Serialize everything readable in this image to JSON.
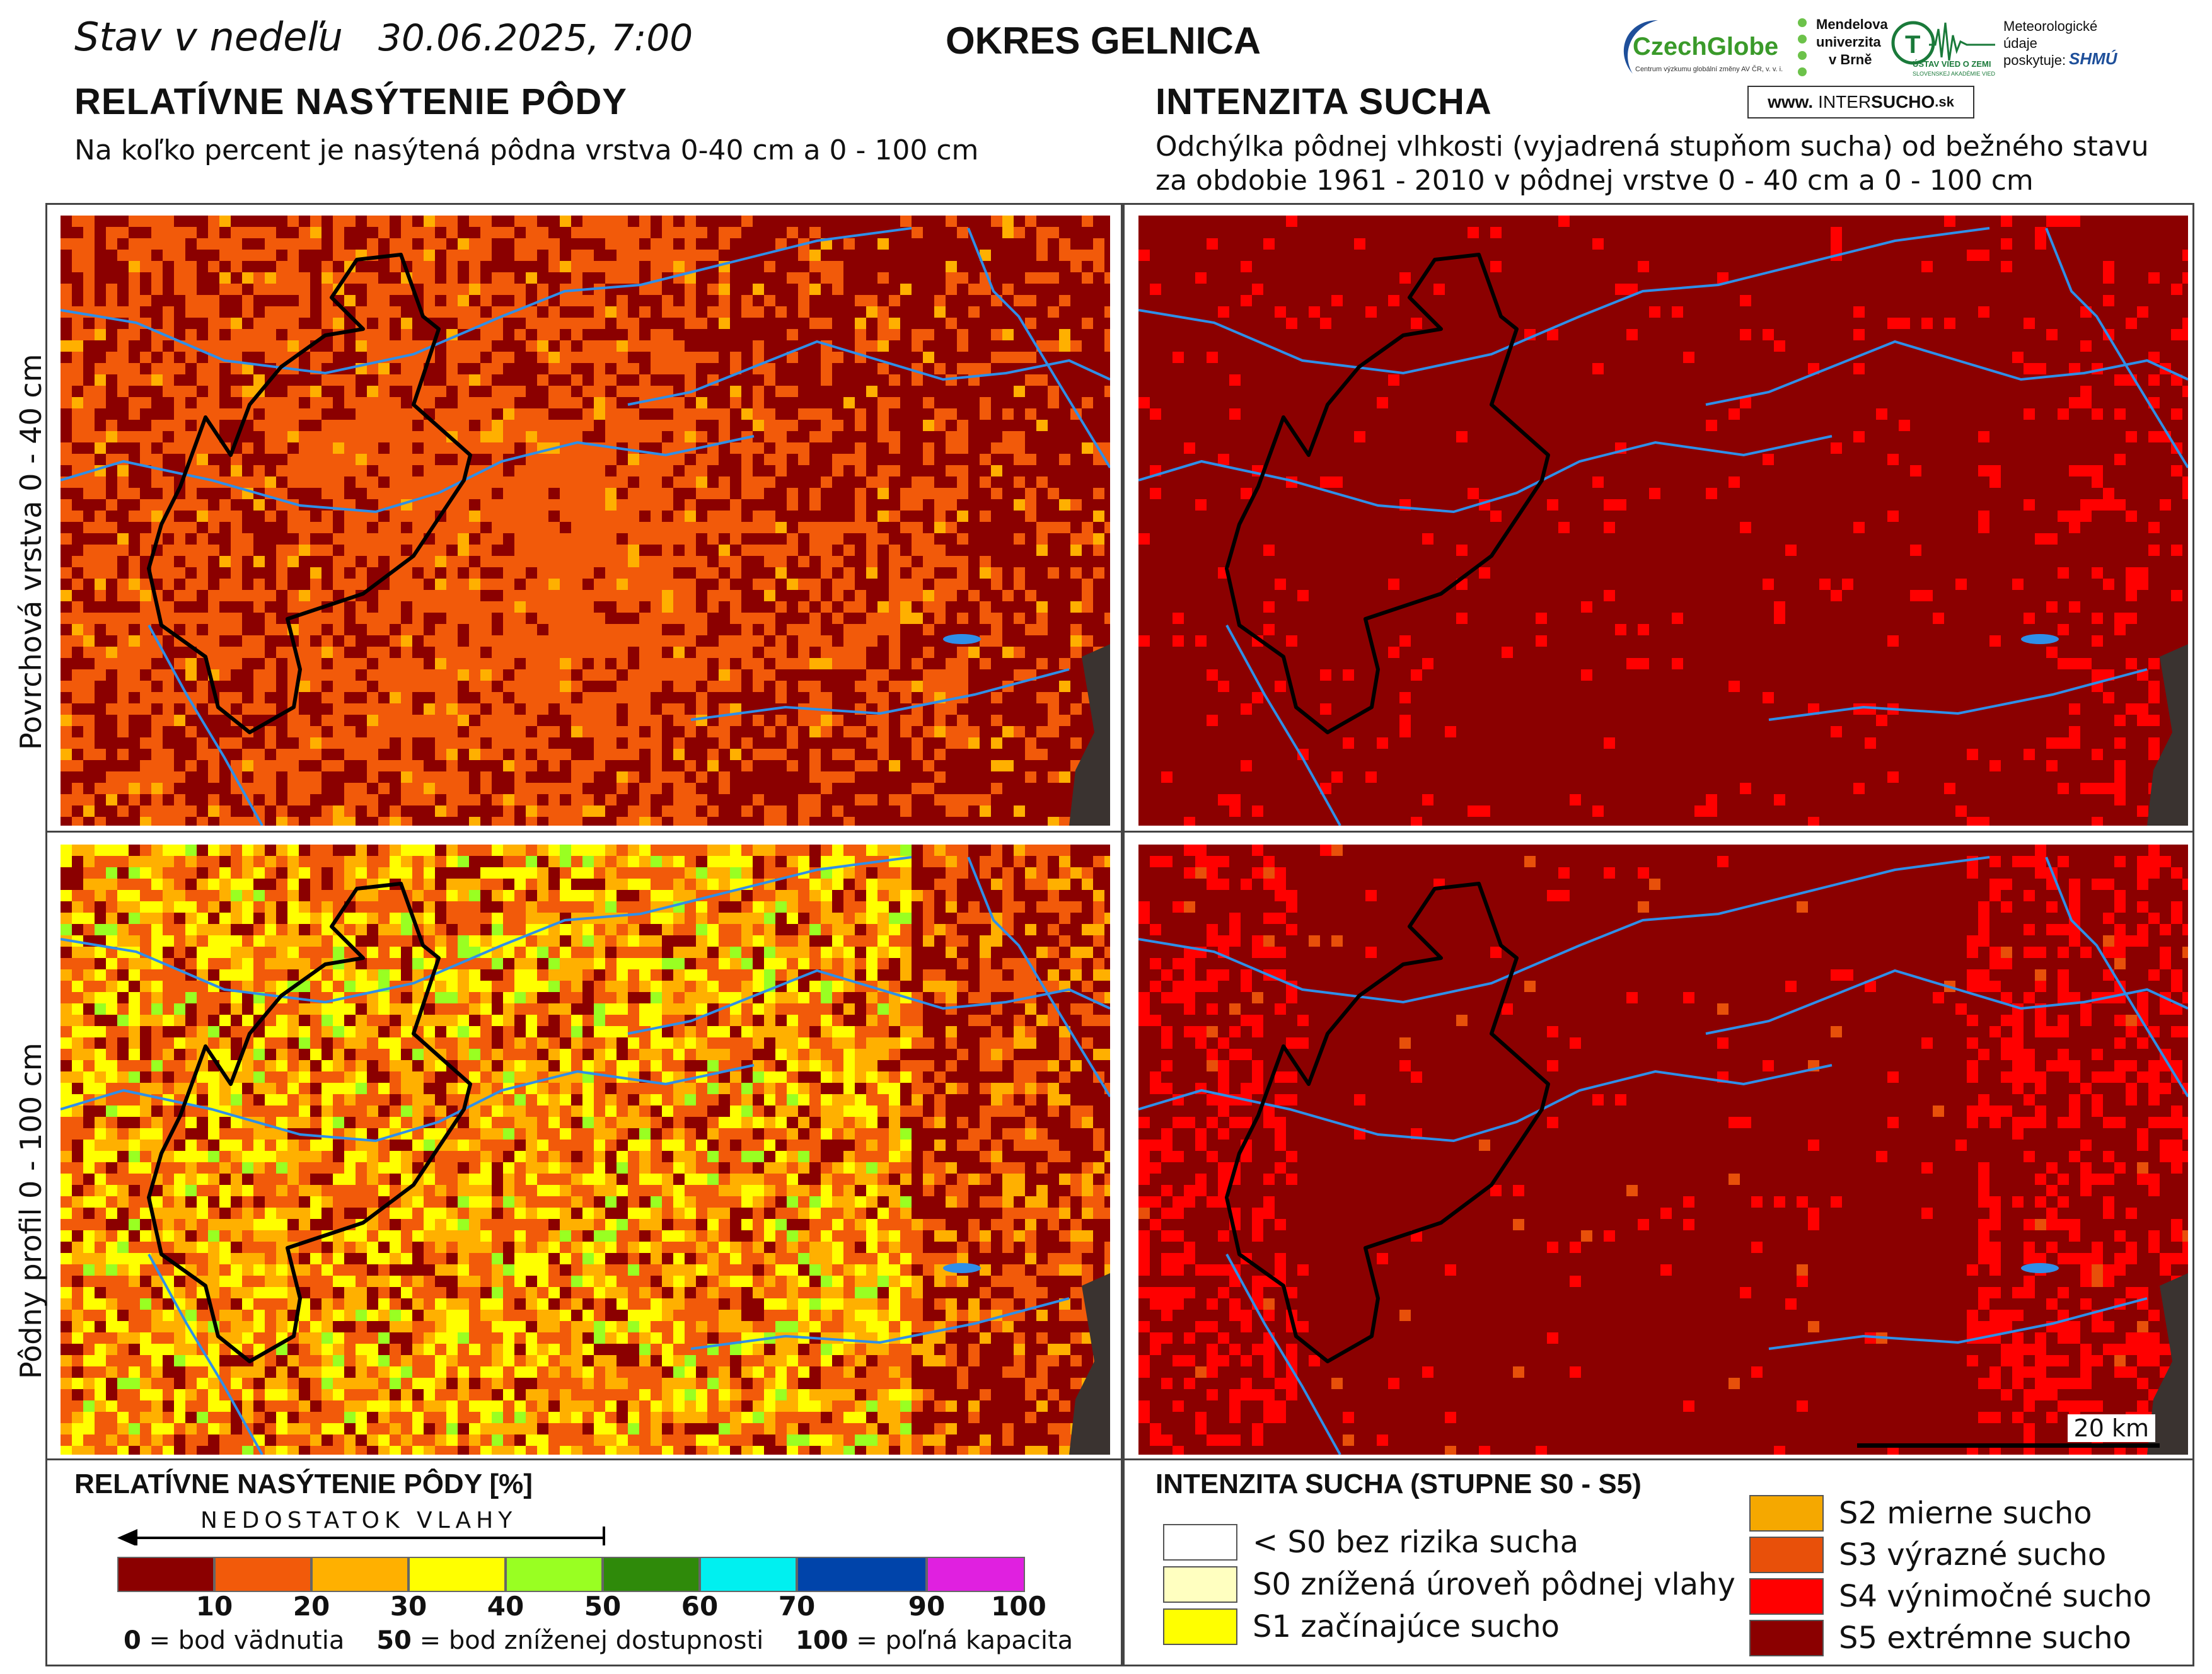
{
  "header": {
    "date_prefix": "Stav v nedeľu",
    "date_value": "30.06.2025, 7:00",
    "district": "OKRES  GELNICA"
  },
  "logos": {
    "czechglobe": "CzechGlobe",
    "czechglobe_sub": "Centrum výzkumu globální změny AV ČR, v. v. i.",
    "mendel_1": "Mendelova",
    "mendel_2": "univerzita",
    "mendel_3": "v Brně",
    "uvz": "ÚSTAV VIED O ZEMI",
    "uvz_sub": "SLOVENSKEJ AKADÉMIE VIED",
    "meteo_1": "Meteorologické",
    "meteo_2": "údaje",
    "meteo_3": "poskytuje:",
    "shmu": "SHMÚ",
    "intersucho_prefix": "www.",
    "intersucho_inter": "INTER",
    "intersucho_sucho": "SUCHO",
    "intersucho_suffix": ".sk"
  },
  "left_section": {
    "title": "RELATÍVNE NASÝTENIE PÔDY",
    "subtitle": "Na koľko percent je nasýtená pôdna vrstva 0-40 cm a 0 - 100 cm"
  },
  "right_section": {
    "title": "INTENZITA SUCHA",
    "subtitle_1": "Odchýlka pôdnej vlhkosti (vyjadrená stupňom sucha) od bežného stavu",
    "subtitle_2": "za obdobie 1961 - 2010 v pôdnej vrstve 0 - 40 cm a 0 - 100 cm"
  },
  "row_labels": {
    "top": "Povrchová vrstva 0 - 40 cm",
    "bottom": "Pôdny profil 0 - 100 cm"
  },
  "scale_bar": {
    "label": "20 km"
  },
  "saturation_legend": {
    "title": "RELATÍVNE NASÝTENIE PÔDY [%]",
    "deficit_label": "NEDOSTATOK VLAHY",
    "ticks": [
      "10",
      "20",
      "30",
      "40",
      "50",
      "60",
      "70",
      "90",
      "100"
    ],
    "colors": [
      "#8b0000",
      "#f25a0a",
      "#ffb000",
      "#ffff00",
      "#99ff22",
      "#2f8a0a",
      "#00f0f0",
      "#0044aa",
      "#e020e0"
    ],
    "note_0_bold": "0",
    "note_0_text": " = bod vädnutia",
    "note_50_bold": "50",
    "note_50_text": " = bod zníženej dostupnosti",
    "note_100_bold": "100",
    "note_100_text": " = poľná kapacita"
  },
  "drought_legend": {
    "title": "INTENZITA SUCHA (STUPNE S0 - S5)",
    "items": [
      {
        "label": "< S0 bez rizika sucha",
        "color": "#ffffff"
      },
      {
        "label": "S0 znížená úroveň pôdnej vlahy",
        "color": "#ffffc0"
      },
      {
        "label": "S1 začínajúce sucho",
        "color": "#ffff00"
      },
      {
        "label": "S2 mierne sucho",
        "color": "#f5a800"
      },
      {
        "label": "S3 výrazné sucho",
        "color": "#e8500a"
      },
      {
        "label": "S4 výnimočné sucho",
        "color": "#ff0000"
      },
      {
        "label": "S5 extrémne sucho",
        "color": "#8b0000"
      }
    ]
  }
}
